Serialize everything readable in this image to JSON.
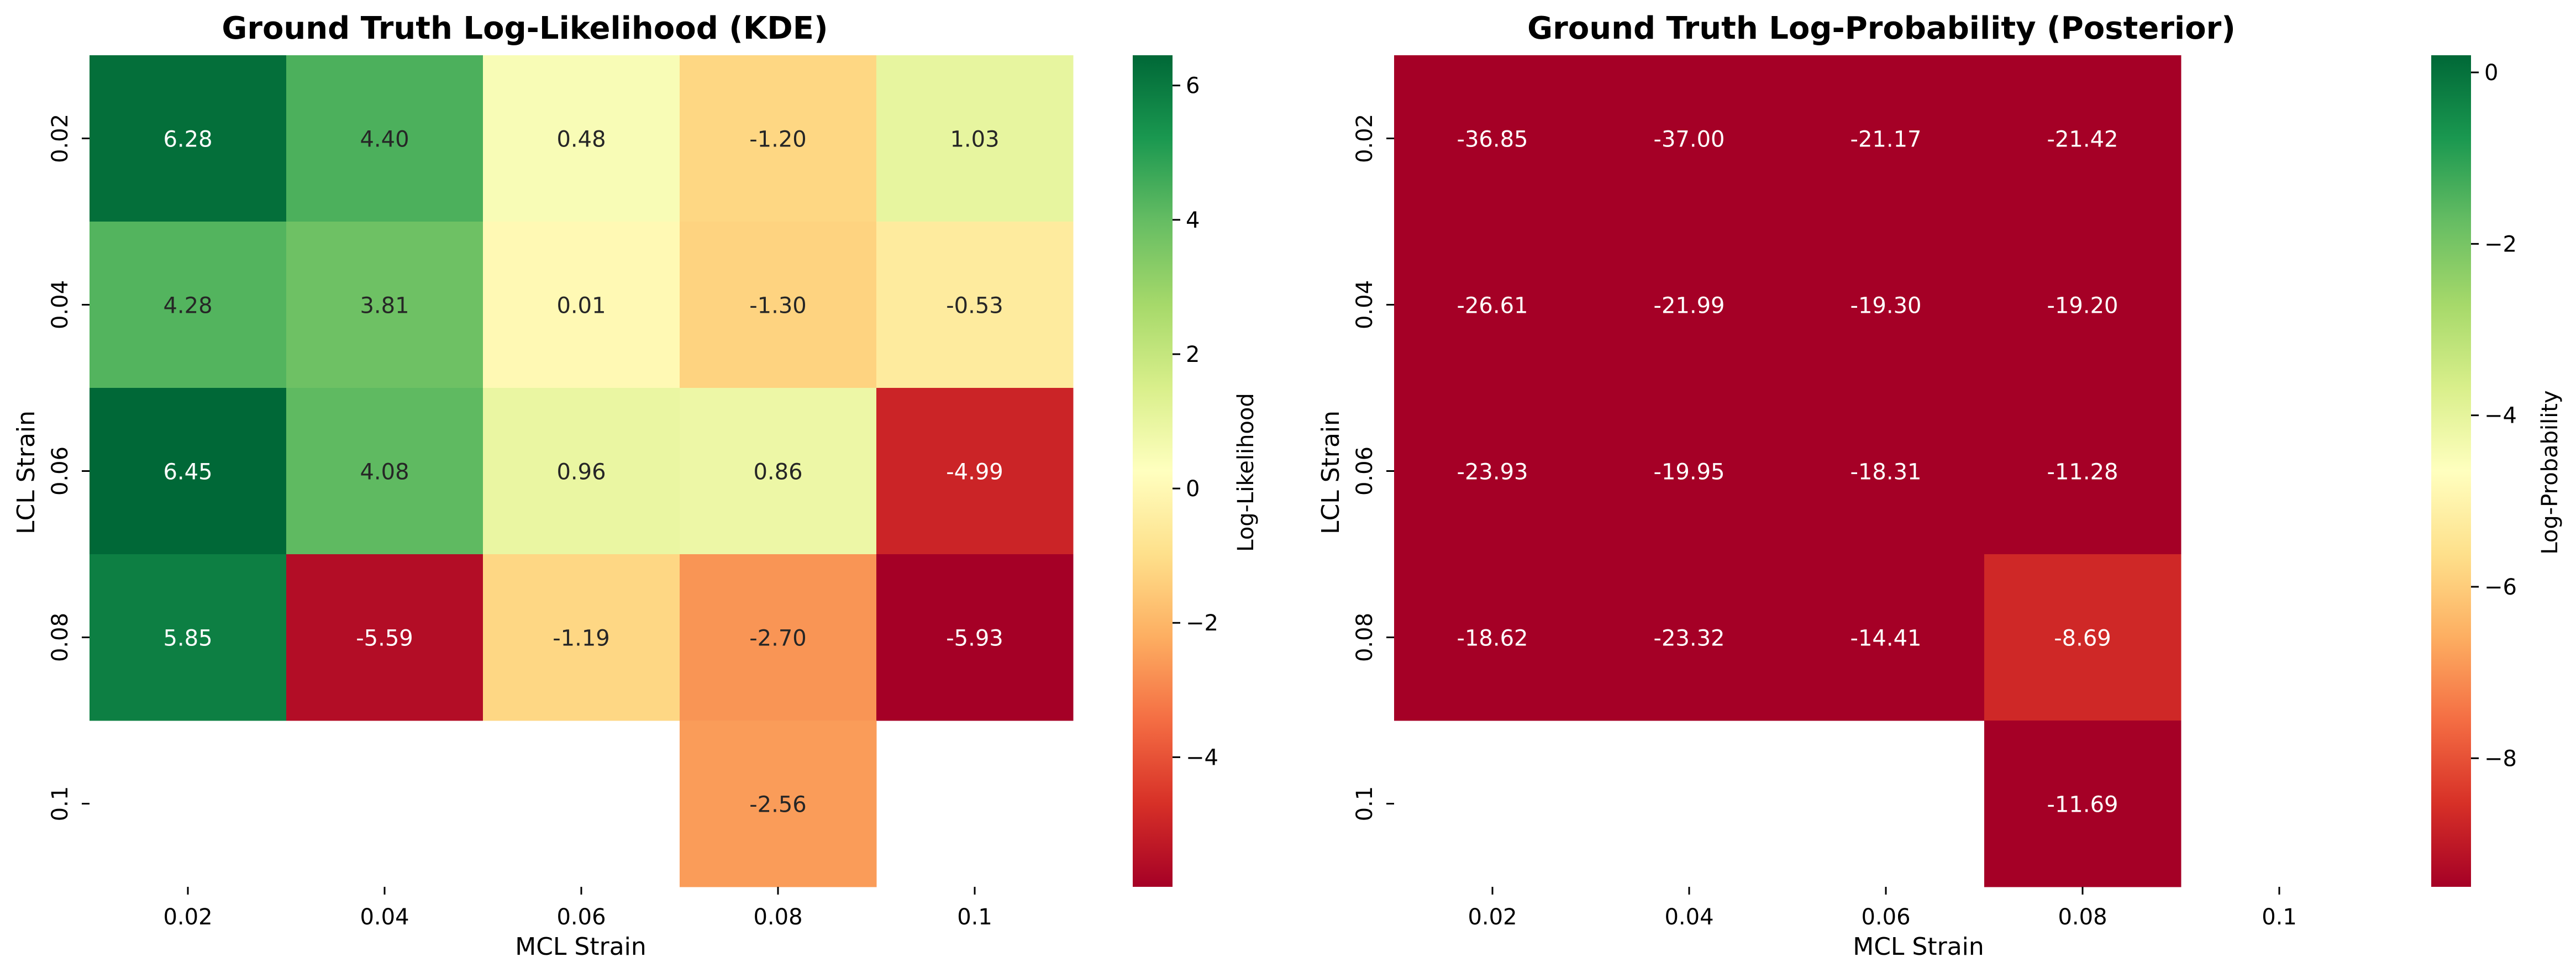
{
  "chart_data": [
    {
      "type": "heatmap",
      "title": "Ground Truth Log-Likelihood (KDE)",
      "xlabel": "MCL Strain",
      "ylabel": "LCL Strain",
      "x_categories": [
        "0.02",
        "0.04",
        "0.06",
        "0.08",
        "0.1"
      ],
      "y_categories": [
        "0.02",
        "0.04",
        "0.06",
        "0.08",
        "0.1"
      ],
      "values": [
        [
          6.28,
          4.4,
          0.48,
          -1.2,
          1.03
        ],
        [
          4.28,
          3.81,
          0.01,
          -1.3,
          -0.53
        ],
        [
          6.45,
          4.08,
          0.96,
          0.86,
          -4.99
        ],
        [
          5.85,
          -5.59,
          -1.19,
          -2.7,
          -5.93
        ],
        [
          null,
          null,
          null,
          -2.56,
          null
        ]
      ],
      "value_labels": [
        [
          "6.28",
          "4.40",
          "0.48",
          "-1.20",
          "1.03"
        ],
        [
          "4.28",
          "3.81",
          "0.01",
          "-1.30",
          "-0.53"
        ],
        [
          "6.45",
          "4.08",
          "0.96",
          "0.86",
          "-4.99"
        ],
        [
          "5.85",
          "-5.59",
          "-1.19",
          "-2.70",
          "-5.93"
        ],
        [
          "",
          "",
          "",
          "-2.56",
          ""
        ]
      ],
      "colorbar": {
        "label": "Log-Likelihood",
        "range": [
          -5.93,
          6.45
        ],
        "ticks": [
          6,
          4,
          2,
          0,
          -2,
          -4
        ],
        "tick_labels": [
          "6",
          "4",
          "2",
          "0",
          "−2",
          "−4"
        ]
      },
      "colormap": "RdYlGn"
    },
    {
      "type": "heatmap",
      "title": "Ground Truth Log-Probability (Posterior)",
      "xlabel": "MCL Strain",
      "ylabel": "LCL Strain",
      "x_categories": [
        "0.02",
        "0.04",
        "0.06",
        "0.08",
        "0.1"
      ],
      "y_categories": [
        "0.02",
        "0.04",
        "0.06",
        "0.08",
        "0.1"
      ],
      "values": [
        [
          -36.85,
          -37.0,
          -21.17,
          -21.42,
          null
        ],
        [
          -26.61,
          -21.99,
          -19.3,
          -19.2,
          null
        ],
        [
          -23.93,
          -19.95,
          -18.31,
          -11.28,
          null
        ],
        [
          -18.62,
          -23.32,
          -14.41,
          -8.69,
          null
        ],
        [
          null,
          null,
          null,
          -11.69,
          null
        ]
      ],
      "value_labels": [
        [
          "-36.85",
          "-37.00",
          "-21.17",
          "-21.42",
          ""
        ],
        [
          "-26.61",
          "-21.99",
          "-19.30",
          "-19.20",
          ""
        ],
        [
          "-23.93",
          "-19.95",
          "-18.31",
          "-11.28",
          ""
        ],
        [
          "-18.62",
          "-23.32",
          "-14.41",
          "-8.69",
          ""
        ],
        [
          "",
          "",
          "",
          "-11.69",
          ""
        ]
      ],
      "colorbar": {
        "label": "Log-Probability",
        "range": [
          -9.5,
          0.2
        ],
        "ticks": [
          0,
          -2,
          -4,
          -6,
          -8
        ],
        "tick_labels": [
          "0",
          "−2",
          "−4",
          "−6",
          "−8"
        ]
      },
      "colormap": "RdYlGn"
    }
  ]
}
